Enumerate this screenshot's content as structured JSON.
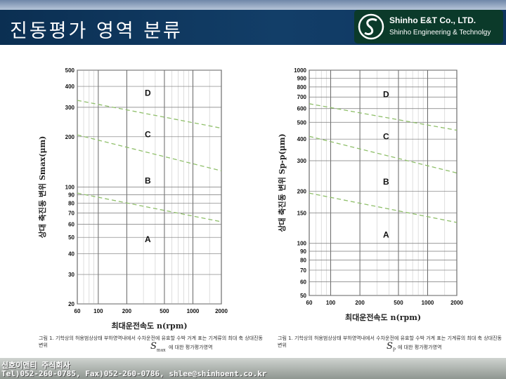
{
  "header": {
    "title": "진동평가 영역 분류",
    "company_name": "Shinho E&T Co., LTD.",
    "company_sub": "Shinho Engineering & Technolgy"
  },
  "colors": {
    "header_bg": "#123e68",
    "logo_bg": "#0b3a2a",
    "guide_line": "#8fbf6a"
  },
  "chart_data": [
    {
      "type": "line",
      "xlabel": "최대운전속도 n(rpm)",
      "ylabel": "상대 축진동 변위 Smax(μm)",
      "xscale": "log",
      "yscale": "log",
      "xlim": [
        60,
        2000
      ],
      "ylim": [
        20,
        500
      ],
      "x_ticks": [
        "60",
        "100",
        "200",
        "500",
        "1000",
        "2000"
      ],
      "y_ticks": [
        "20",
        "30",
        "40",
        "50",
        "60",
        "70",
        "80",
        "90",
        "100",
        "200",
        "300",
        "400",
        "500"
      ],
      "zone_labels": [
        "D",
        "C",
        "B",
        "A"
      ],
      "series": [
        {
          "values": [
            [
              60,
              330
            ],
            [
              2000,
              225
            ]
          ]
        },
        {
          "values": [
            [
              60,
              205
            ],
            [
              2000,
              125
            ]
          ]
        },
        {
          "values": [
            [
              60,
              92
            ],
            [
              2000,
              62
            ]
          ]
        }
      ],
      "caption": "그림 1. 기학상의 허용범상상태 부하영역내에서 수차운전에 유효할 수박 거계 표는 기계류의 최대 축 상대진동변위",
      "caption_tail": "에 대한 평가평가영역",
      "caption_symbol": "S",
      "caption_subscript": "max"
    },
    {
      "type": "line",
      "xlabel": "최대운전속도 n(rpm)",
      "ylabel": "상대 축진동 변위 Sp-p(μm)",
      "xscale": "log",
      "yscale": "log",
      "xlim": [
        60,
        2000
      ],
      "ylim": [
        50,
        1000
      ],
      "x_ticks": [
        "60",
        "100",
        "200",
        "500",
        "1000",
        "2000"
      ],
      "y_ticks": [
        "50",
        "60",
        "70",
        "80",
        "90",
        "100",
        "150",
        "200",
        "300",
        "400",
        "500",
        "600",
        "700",
        "800",
        "900",
        "1000"
      ],
      "zone_labels": [
        "D",
        "C",
        "B",
        "A"
      ],
      "series": [
        {
          "values": [
            [
              60,
              640
            ],
            [
              2000,
              450
            ]
          ]
        },
        {
          "values": [
            [
              60,
              415
            ],
            [
              2000,
              255
            ]
          ]
        },
        {
          "values": [
            [
              60,
              195
            ],
            [
              2000,
              132
            ]
          ]
        }
      ],
      "caption": "그림 1. 기학상의 허용범상상태 부하영역내에서 수차운전에 유효할 수박 거계 표는 기계류의 최대 축 상대진동변위",
      "caption_tail": "에 대한 평가평가영역",
      "caption_symbol": "S",
      "caption_subscript": "P"
    }
  ],
  "footer": {
    "company": "신호이앤티 주식회사",
    "contact": "Tel)052-260-0785, Fax)052-260-0786, shlee@shinhoent.co.kr"
  }
}
